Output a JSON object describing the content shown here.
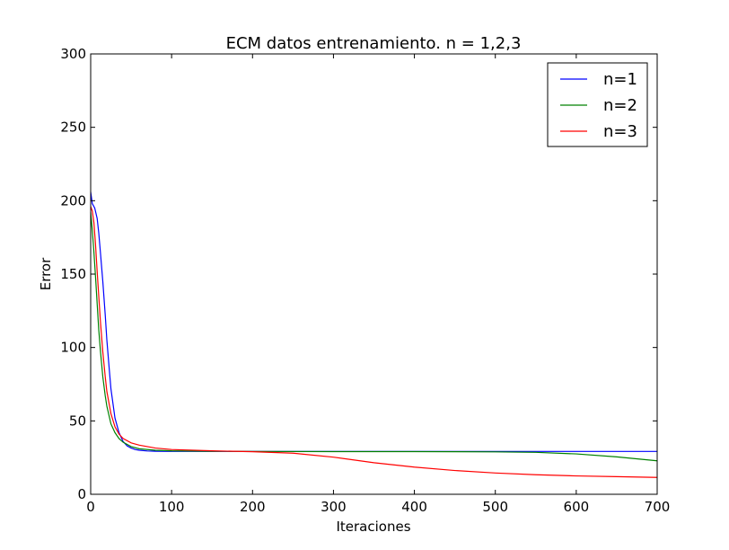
{
  "chart_data": {
    "type": "line",
    "title": "ECM datos entrenamiento. n = 1,2,3",
    "xlabel": "Iteraciones",
    "ylabel": "Error",
    "xlim": [
      0,
      700
    ],
    "ylim": [
      0,
      300
    ],
    "xticks": [
      0,
      100,
      200,
      300,
      400,
      500,
      600,
      700
    ],
    "yticks": [
      0,
      50,
      100,
      150,
      200,
      250,
      300
    ],
    "grid": false,
    "legend_position": "top-right",
    "series": [
      {
        "name": "n=1",
        "color": "#0000ff",
        "x": [
          0,
          2,
          5,
          8,
          10,
          12,
          15,
          18,
          20,
          23,
          25,
          28,
          30,
          35,
          40,
          45,
          50,
          55,
          60,
          70,
          80,
          100,
          150,
          200,
          300,
          400,
          500,
          600,
          700
        ],
        "y": [
          206,
          198,
          195,
          188,
          178,
          165,
          145,
          122,
          105,
          85,
          72,
          60,
          52,
          42,
          36,
          33,
          31.5,
          30.5,
          30,
          29.5,
          29.3,
          29.2,
          29.2,
          29.2,
          29.2,
          29.2,
          29.2,
          29.2,
          29.2
        ]
      },
      {
        "name": "n=2",
        "color": "#008000",
        "x": [
          0,
          2,
          4,
          6,
          8,
          10,
          12,
          15,
          18,
          20,
          25,
          30,
          35,
          40,
          50,
          60,
          80,
          100,
          150,
          200,
          300,
          400,
          500,
          550,
          600,
          650,
          700
        ],
        "y": [
          192,
          180,
          165,
          148,
          130,
          112,
          98,
          80,
          67,
          60,
          48,
          42,
          38,
          35.5,
          32.5,
          31,
          30,
          29.6,
          29.3,
          29.2,
          29.1,
          29.1,
          28.9,
          28.6,
          27.5,
          25.5,
          22.8
        ]
      },
      {
        "name": "n=3",
        "color": "#ff0000",
        "x": [
          0,
          2,
          4,
          6,
          8,
          10,
          12,
          15,
          18,
          20,
          25,
          30,
          35,
          40,
          50,
          60,
          80,
          100,
          150,
          200,
          250,
          300,
          350,
          400,
          450,
          500,
          550,
          600,
          650,
          700
        ],
        "y": [
          196,
          193,
          185,
          170,
          152,
          135,
          118,
          97,
          80,
          70,
          55,
          46,
          41,
          38,
          35,
          33.5,
          31.5,
          30.5,
          29.6,
          29,
          28,
          25.3,
          21.5,
          18.5,
          16.2,
          14.5,
          13.3,
          12.5,
          12,
          11.5
        ]
      }
    ]
  }
}
